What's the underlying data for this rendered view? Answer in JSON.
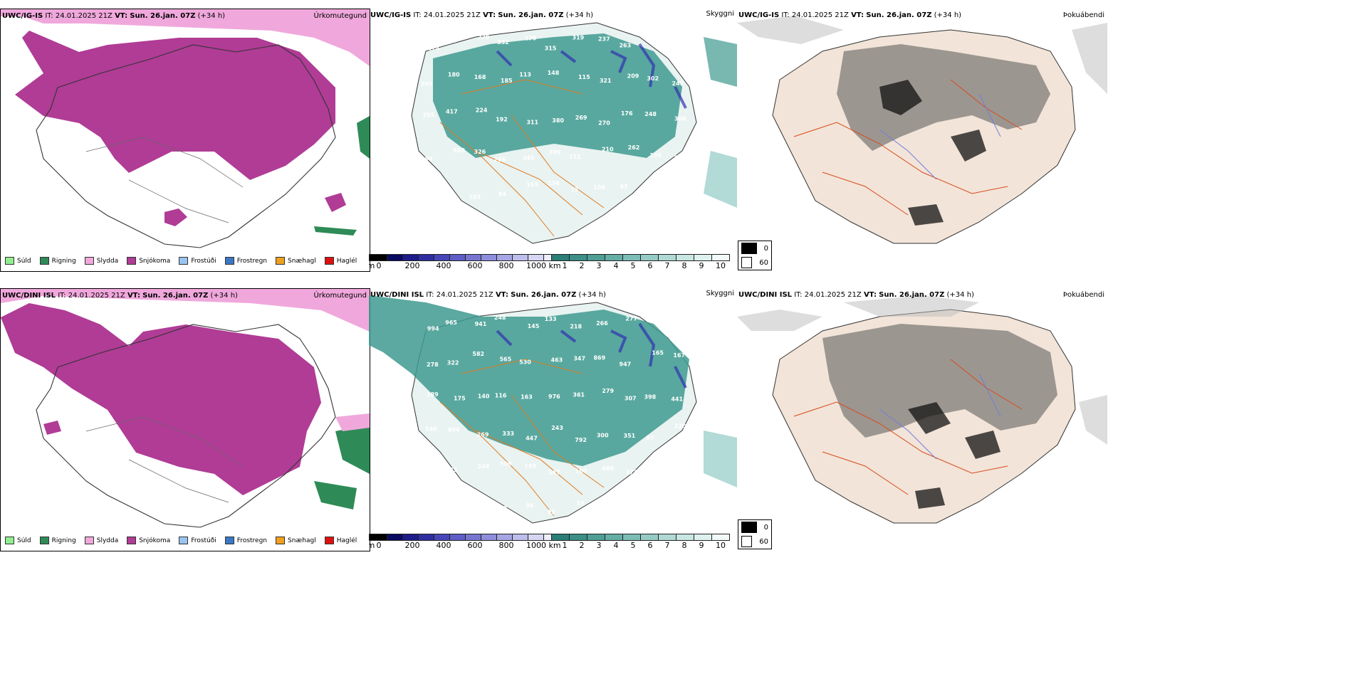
{
  "rows": [
    {
      "model": "UWC/IG-IS",
      "it_label": "IT:",
      "it_value": "24.01.2025 21Z",
      "vt_label": "VT:",
      "vt_value": "Sun. 26.jan. 07Z",
      "lead": "(+34 h)",
      "products": [
        "Úrkomutegund",
        "Skyggni",
        "Þokuábendi"
      ]
    },
    {
      "model": "UWC/DINI ISL",
      "it_label": "IT:",
      "it_value": "24.01.2025 21Z",
      "vt_label": "VT:",
      "vt_value": "Sun. 26.jan. 07Z",
      "lead": "(+34 h)",
      "products": [
        "Úrkomutegund",
        "Skyggni",
        "Þokuábendi"
      ]
    }
  ],
  "precip_legend": [
    {
      "label": "Súld",
      "color": "#90ee90"
    },
    {
      "label": "Rigning",
      "color": "#2e8b57"
    },
    {
      "label": "Slydda",
      "color": "#f0a8dc"
    },
    {
      "label": "Snjókoma",
      "color": "#b03c96"
    },
    {
      "label": "Frostúði",
      "color": "#99c4f0"
    },
    {
      "label": "Frostregn",
      "color": "#3a78c4"
    },
    {
      "label": "Snæhagl",
      "color": "#f0a020"
    },
    {
      "label": "Haglél",
      "color": "#e01010"
    }
  ],
  "cloudbase_bar": {
    "unit": "m",
    "ticks": [
      "0",
      "200",
      "400",
      "600",
      "800",
      "1000"
    ]
  },
  "visibility_bar": {
    "unit": "km",
    "ticks": [
      "1",
      "2",
      "3",
      "4",
      "5",
      "6",
      "7",
      "8",
      "9",
      "10"
    ]
  },
  "fog_legend": [
    "0",
    "60"
  ],
  "labels_row1": [
    "274",
    "334",
    "270",
    "332",
    "179",
    "315",
    "319",
    "237",
    "263",
    "259",
    "143",
    "205",
    "180",
    "168",
    "185",
    "113",
    "148",
    "115",
    "321",
    "209",
    "302",
    "247",
    "295",
    "417",
    "224",
    "192",
    "311",
    "380",
    "269",
    "270",
    "176",
    "248",
    "308",
    "299",
    "688",
    "326",
    "266",
    "345",
    "390",
    "151",
    "210",
    "262",
    "239",
    "372",
    "188",
    "115",
    "105",
    "84",
    "165",
    "136",
    "13",
    "106",
    "85"
  ],
  "labels_row2": [
    "994",
    "965",
    "941",
    "248",
    "145",
    "133",
    "218",
    "266",
    "277",
    "245",
    "180",
    "278",
    "322",
    "582",
    "565",
    "530",
    "463",
    "347",
    "869",
    "947",
    "165",
    "167",
    "189",
    "175",
    "140",
    "116",
    "163",
    "976",
    "361",
    "279",
    "307",
    "398",
    "441",
    "540",
    "896",
    "269",
    "333",
    "447",
    "243",
    "792",
    "300",
    "351",
    "97",
    "220",
    "186",
    "233",
    "244",
    "509",
    "169",
    "147",
    "160",
    "680",
    "371",
    "303",
    "458",
    "427",
    "372",
    "286",
    "98",
    "96",
    "93",
    "10"
  ]
}
